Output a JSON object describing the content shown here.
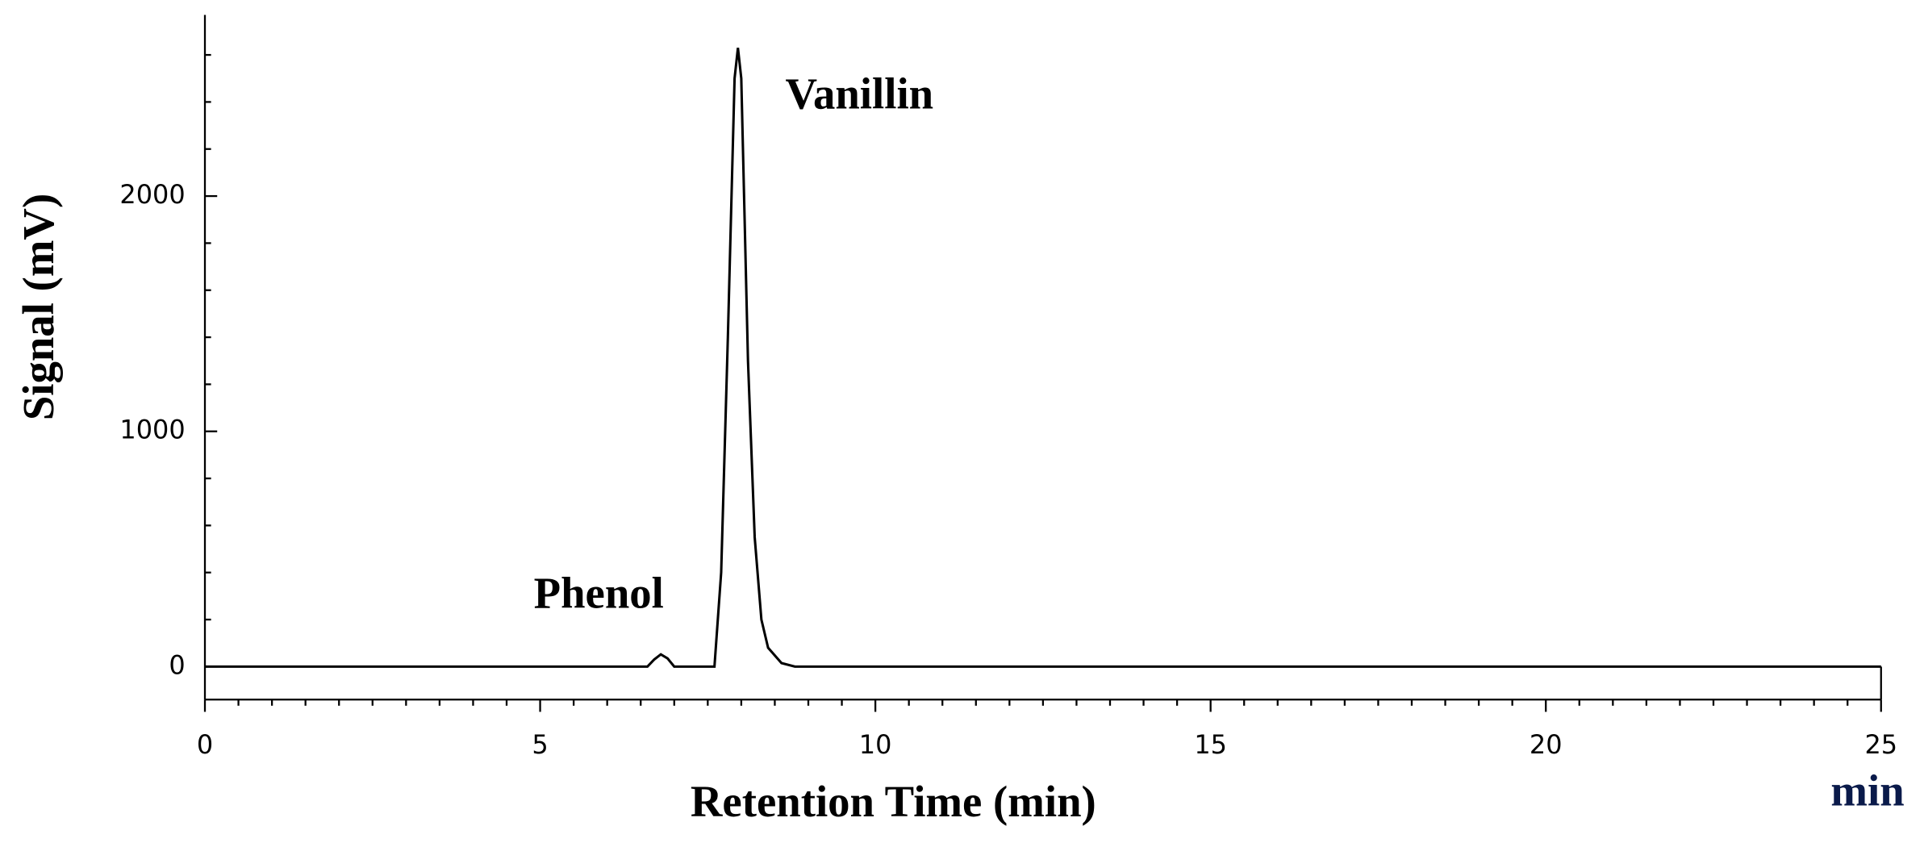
{
  "chart_data": {
    "type": "line",
    "x_label": "Retention Time (min)",
    "y_label": "Signal (mV)",
    "x_unit": "min",
    "annotations": [
      "Vanillin",
      "Phenol"
    ],
    "x": [
      0,
      6.6,
      6.7,
      6.8,
      6.9,
      7.0,
      7.6,
      7.7,
      7.8,
      7.9,
      7.95,
      8.0,
      8.1,
      8.2,
      8.3,
      8.4,
      8.6,
      8.8,
      25
    ],
    "values": [
      0,
      0,
      30,
      52,
      35,
      0,
      0,
      400,
      1400,
      2500,
      2630,
      2500,
      1300,
      550,
      200,
      80,
      15,
      0,
      0
    ],
    "color": "#000000",
    "xlim": [
      0,
      25
    ],
    "xticks": [
      0,
      5,
      10,
      15,
      20,
      25
    ],
    "xminorticks": [
      0.5,
      1,
      1.5,
      2,
      2.5,
      3,
      3.5,
      4,
      4.5,
      5.5,
      6,
      6.5,
      7,
      7.5,
      8,
      8.5,
      9,
      9.5,
      10.5,
      11,
      11.5,
      12,
      12.5,
      13,
      13.5,
      14,
      14.5,
      15.5,
      16,
      16.5,
      17,
      17.5,
      18,
      18.5,
      19,
      19.5,
      20.5,
      21,
      21.5,
      22,
      22.5,
      23,
      23.5,
      24,
      24.5
    ],
    "ylim": [
      -140,
      2770
    ],
    "yticks": [
      0,
      1000,
      2000
    ],
    "yminorticks": [
      200,
      400,
      600,
      800,
      1200,
      1400,
      1600,
      1800,
      2200,
      2400,
      2600
    ],
    "grid": false
  }
}
